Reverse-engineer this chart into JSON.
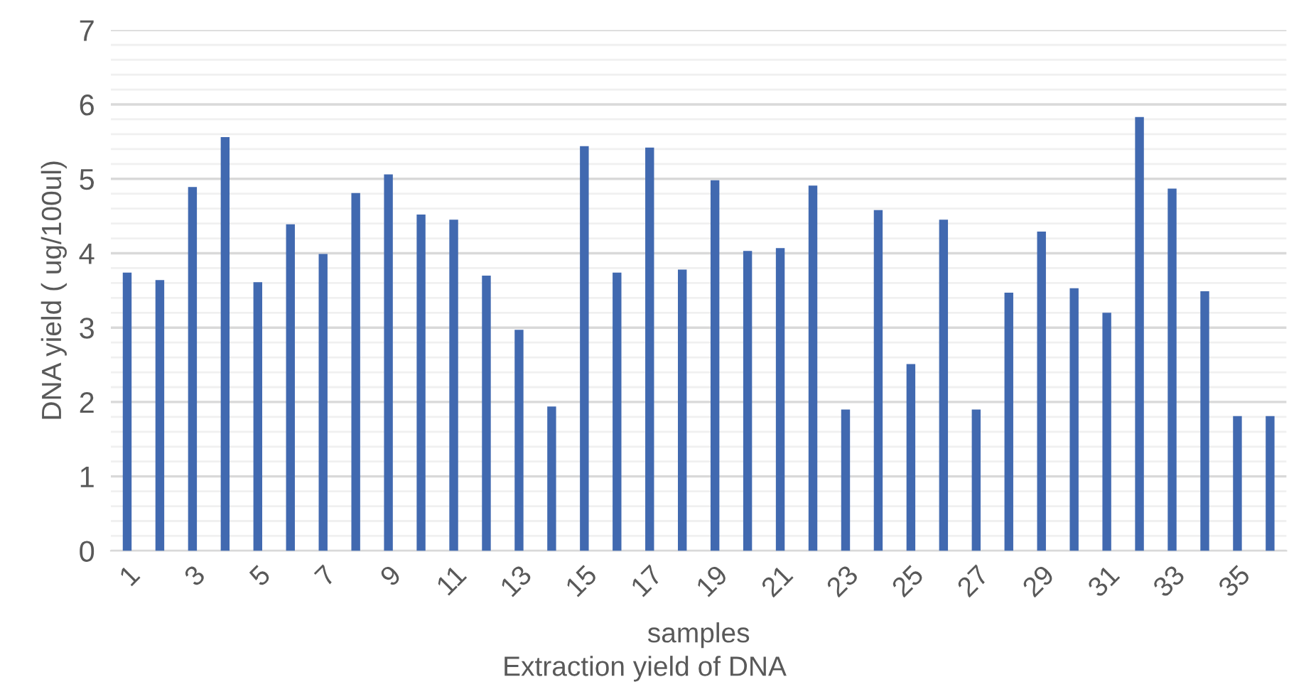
{
  "chart_data": {
    "type": "bar",
    "title": "Extraction yield of DNA",
    "xlabel": "samples",
    "ylabel": "DNA yield ( ug/100ul)",
    "categories": [
      "1",
      null,
      "3",
      null,
      "5",
      null,
      "7",
      null,
      "9",
      null,
      "11",
      null,
      "13",
      null,
      "15",
      null,
      "17",
      null,
      "19",
      null,
      "21",
      null,
      "23",
      null,
      "25",
      null,
      "27",
      null,
      "29",
      null,
      "31",
      null,
      "33",
      null,
      "35",
      null
    ],
    "values": [
      3.74,
      3.64,
      4.89,
      5.56,
      3.61,
      4.39,
      3.99,
      4.81,
      5.06,
      4.52,
      4.45,
      3.7,
      2.97,
      1.94,
      5.44,
      3.74,
      5.42,
      3.78,
      4.98,
      4.03,
      4.07,
      4.91,
      1.9,
      4.58,
      2.51,
      4.45,
      1.9,
      3.47,
      4.29,
      3.53,
      3.2,
      5.83,
      4.87,
      3.49,
      1.81,
      1.81
    ],
    "color": "#4169b0",
    "ylim": [
      0,
      7
    ],
    "yticks": [
      0,
      {
        "value": 0.2,
        "label": null
      },
      {
        "value": 0.4,
        "label": null
      },
      {
        "value": 0.6,
        "label": null
      },
      {
        "value": 0.8,
        "label": null
      },
      1,
      {
        "value": 1.2,
        "label": null
      },
      {
        "value": 1.4,
        "label": null
      },
      {
        "value": 1.6,
        "label": null
      },
      {
        "value": 1.8,
        "label": null
      },
      2,
      {
        "value": 2.2,
        "label": null
      },
      {
        "value": 2.4,
        "label": null
      },
      {
        "value": 2.6,
        "label": null
      },
      {
        "value": 2.8,
        "label": null
      },
      3,
      {
        "value": 3.2,
        "label": null
      },
      {
        "value": 3.4,
        "label": null
      },
      {
        "value": 3.6,
        "label": null
      },
      {
        "value": 3.8,
        "label": null
      },
      4,
      {
        "value": 4.2,
        "label": null
      },
      {
        "value": 4.4,
        "label": null
      },
      {
        "value": 4.6,
        "label": null
      },
      {
        "value": 4.8,
        "label": null
      },
      5,
      {
        "value": 5.2,
        "label": null
      },
      {
        "value": 5.4,
        "label": null
      },
      {
        "value": 5.6,
        "label": null
      },
      {
        "value": 5.8,
        "label": null
      },
      6,
      {
        "value": 6.2,
        "label": null
      },
      {
        "value": 6.4,
        "label": null
      },
      {
        "value": 6.6,
        "label": null
      },
      {
        "value": 6.8,
        "label": null
      },
      7
    ],
    "grid": "y"
  }
}
